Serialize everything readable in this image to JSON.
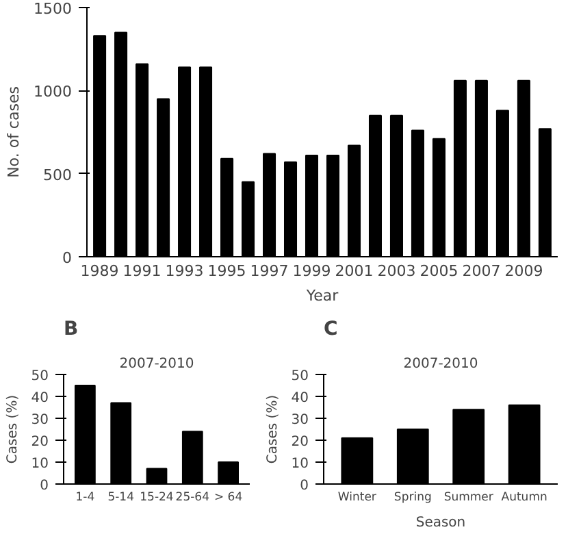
{
  "chart_data": [
    {
      "type": "bar",
      "xlabel": "Year",
      "ylabel": "No. of cases",
      "categories": [
        "1989",
        null,
        "1991",
        null,
        "1993",
        null,
        "1995",
        null,
        "1997",
        null,
        "1999",
        null,
        "2001",
        null,
        "2003",
        null,
        "2005",
        null,
        "2007",
        null,
        "2009",
        null
      ],
      "values": [
        1330,
        1350,
        1160,
        950,
        1140,
        1140,
        590,
        450,
        620,
        570,
        610,
        610,
        670,
        850,
        850,
        760,
        710,
        1060,
        1060,
        880,
        1060,
        770
      ],
      "color": "#000000",
      "ylim": [
        0,
        1500
      ],
      "yticks": [
        0,
        500,
        1000,
        1500
      ],
      "grid": false
    },
    {
      "type": "bar",
      "title": "2007-2010",
      "annotations": [
        "B"
      ],
      "ylabel": "Cases (%)",
      "categories": [
        "1-4",
        "5-14",
        "15-24",
        "25-64",
        "> 64"
      ],
      "values": [
        45,
        37,
        7,
        24,
        10
      ],
      "color": "#000000",
      "ylim": [
        0,
        50
      ],
      "yticks": [
        0,
        10,
        20,
        30,
        40,
        50
      ],
      "grid": false
    },
    {
      "type": "bar",
      "title": "2007-2010",
      "annotations": [
        "C"
      ],
      "xlabel": "Season",
      "ylabel": "Cases (%)",
      "categories": [
        "Winter",
        "Spring",
        "Summer",
        "Autumn"
      ],
      "values": [
        21,
        25,
        34,
        36
      ],
      "color": "#000000",
      "ylim": [
        0,
        50
      ],
      "yticks": [
        0,
        10,
        20,
        30,
        40,
        50
      ],
      "grid": false
    }
  ]
}
